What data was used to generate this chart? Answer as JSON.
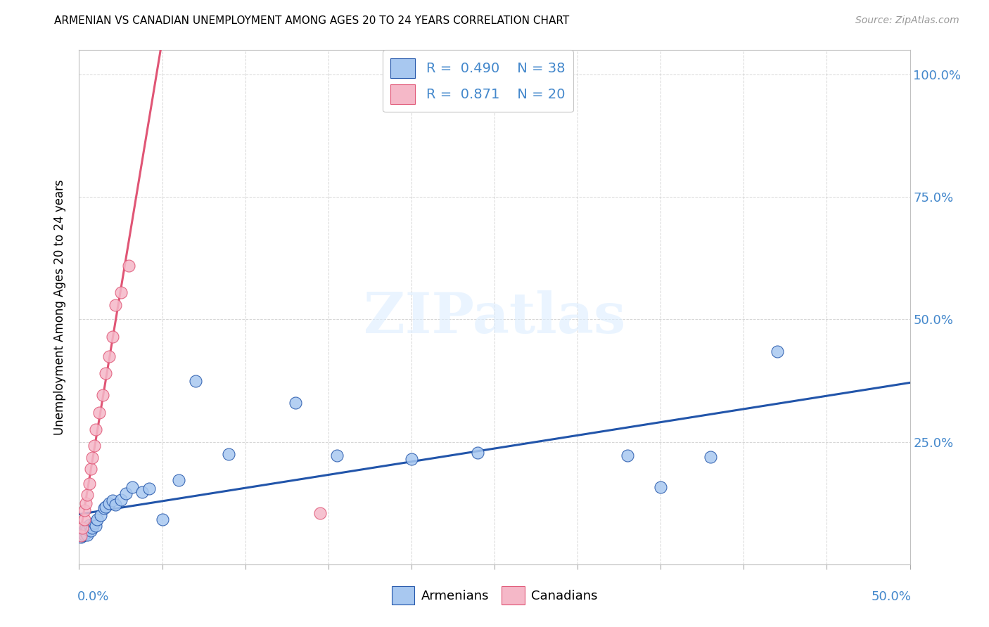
{
  "title": "ARMENIAN VS CANADIAN UNEMPLOYMENT AMONG AGES 20 TO 24 YEARS CORRELATION CHART",
  "source": "Source: ZipAtlas.com",
  "ylabel": "Unemployment Among Ages 20 to 24 years",
  "armenian_R": "0.490",
  "armenian_N": "38",
  "canadian_R": "0.871",
  "canadian_N": "20",
  "armenian_color": "#a8c8f0",
  "armenian_line_color": "#2255aa",
  "canadian_color": "#f5b8c8",
  "canadian_line_color": "#e05575",
  "xlim": [
    0.0,
    0.5
  ],
  "ylim": [
    0.0,
    1.05
  ],
  "ytick_positions": [
    0.0,
    0.25,
    0.5,
    0.75,
    1.0
  ],
  "ytick_labels": [
    "",
    "25.0%",
    "50.0%",
    "75.0%",
    "100.0%"
  ],
  "xtick_positions": [
    0.0,
    0.05,
    0.1,
    0.15,
    0.2,
    0.25,
    0.3,
    0.35,
    0.4,
    0.45,
    0.5
  ],
  "armenian_x": [
    0.001,
    0.002,
    0.002,
    0.003,
    0.003,
    0.004,
    0.004,
    0.005,
    0.005,
    0.006,
    0.007,
    0.008,
    0.009,
    0.01,
    0.011,
    0.013,
    0.015,
    0.016,
    0.018,
    0.02,
    0.022,
    0.025,
    0.028,
    0.032,
    0.038,
    0.042,
    0.05,
    0.06,
    0.07,
    0.09,
    0.13,
    0.155,
    0.2,
    0.24,
    0.33,
    0.35,
    0.38,
    0.42
  ],
  "armenian_y": [
    0.055,
    0.058,
    0.065,
    0.06,
    0.07,
    0.065,
    0.075,
    0.06,
    0.072,
    0.08,
    0.068,
    0.075,
    0.085,
    0.078,
    0.092,
    0.1,
    0.115,
    0.118,
    0.125,
    0.13,
    0.122,
    0.132,
    0.145,
    0.158,
    0.148,
    0.155,
    0.092,
    0.172,
    0.375,
    0.225,
    0.33,
    0.222,
    0.215,
    0.228,
    0.222,
    0.158,
    0.22,
    0.435
  ],
  "canadian_x": [
    0.001,
    0.002,
    0.003,
    0.003,
    0.004,
    0.005,
    0.006,
    0.007,
    0.008,
    0.009,
    0.01,
    0.012,
    0.014,
    0.016,
    0.018,
    0.02,
    0.022,
    0.025,
    0.03,
    0.145
  ],
  "canadian_y": [
    0.058,
    0.075,
    0.092,
    0.11,
    0.125,
    0.142,
    0.165,
    0.195,
    0.218,
    0.242,
    0.275,
    0.31,
    0.345,
    0.39,
    0.425,
    0.465,
    0.53,
    0.555,
    0.61,
    0.105
  ],
  "arm_line_x0": 0.0,
  "arm_line_x1": 0.5,
  "can_line_x0": 0.0,
  "can_line_x1": 0.5
}
